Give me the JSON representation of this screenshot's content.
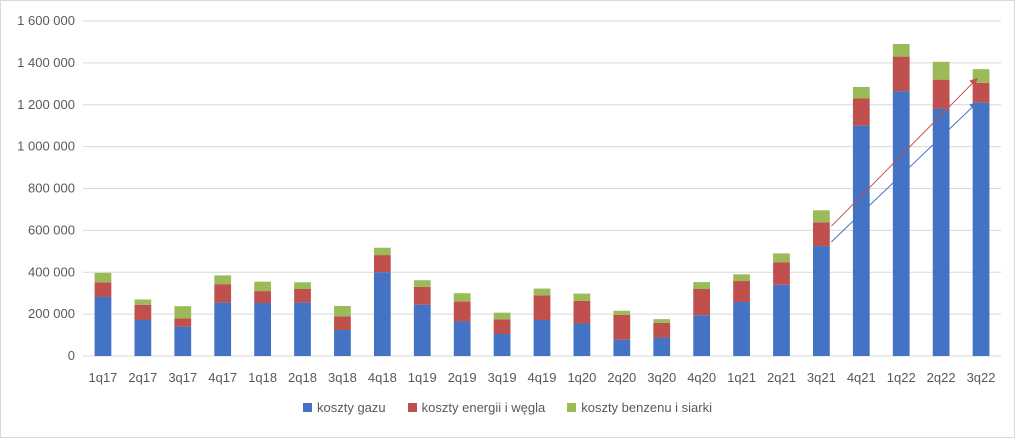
{
  "chart_data": {
    "type": "bar",
    "stacked": true,
    "categories": [
      "1q17",
      "2q17",
      "3q17",
      "4q17",
      "1q18",
      "2q18",
      "3q18",
      "4q18",
      "1q19",
      "2q19",
      "3q19",
      "4q19",
      "1q20",
      "2q20",
      "3q20",
      "4q20",
      "1q21",
      "2q21",
      "3q21",
      "4q21",
      "1q22",
      "2q22",
      "3q22"
    ],
    "series": [
      {
        "name": "koszty gazu",
        "color": "#4472c4",
        "values": [
          282000,
          172000,
          140000,
          255000,
          253000,
          255000,
          124000,
          400000,
          245000,
          165000,
          105000,
          172000,
          155000,
          78000,
          88000,
          195000,
          258000,
          340000,
          525000,
          1100000,
          1265000,
          1180000,
          1210000
        ]
      },
      {
        "name": "koszty energii i węgla",
        "color": "#c0504d",
        "values": [
          70000,
          73000,
          40000,
          88000,
          57000,
          65000,
          65000,
          82000,
          85000,
          95000,
          70000,
          118000,
          108000,
          118000,
          70000,
          125000,
          100000,
          108000,
          113000,
          130000,
          165000,
          140000,
          95000
        ]
      },
      {
        "name": "koszty benzenu i siarki",
        "color": "#9bbb59",
        "values": [
          45000,
          25000,
          58000,
          42000,
          45000,
          32000,
          50000,
          35000,
          32000,
          40000,
          32000,
          32000,
          35000,
          20000,
          18000,
          33000,
          32000,
          42000,
          58000,
          55000,
          60000,
          85000,
          65000
        ]
      }
    ],
    "ylim": [
      0,
      1600000
    ],
    "yticks": [
      0,
      200000,
      400000,
      600000,
      800000,
      1000000,
      1200000,
      1400000,
      1600000
    ],
    "ytick_labels": [
      "0",
      "200 000",
      "400 000",
      "600 000",
      "800 000",
      "1 000 000",
      "1 200 000",
      "1 400 000",
      "1 600 000"
    ],
    "grid": true,
    "legend_position": "bottom",
    "annotations": [
      {
        "type": "arrow",
        "color": "#c0504d",
        "from": {
          "x": "3q21",
          "y": 620000
        },
        "to": {
          "x": "3q22",
          "y": 1325000
        }
      },
      {
        "type": "arrow",
        "color": "#4472c4",
        "from": {
          "x": "3q21",
          "y": 545000
        },
        "to": {
          "x": "3q22",
          "y": 1210000
        }
      }
    ]
  }
}
